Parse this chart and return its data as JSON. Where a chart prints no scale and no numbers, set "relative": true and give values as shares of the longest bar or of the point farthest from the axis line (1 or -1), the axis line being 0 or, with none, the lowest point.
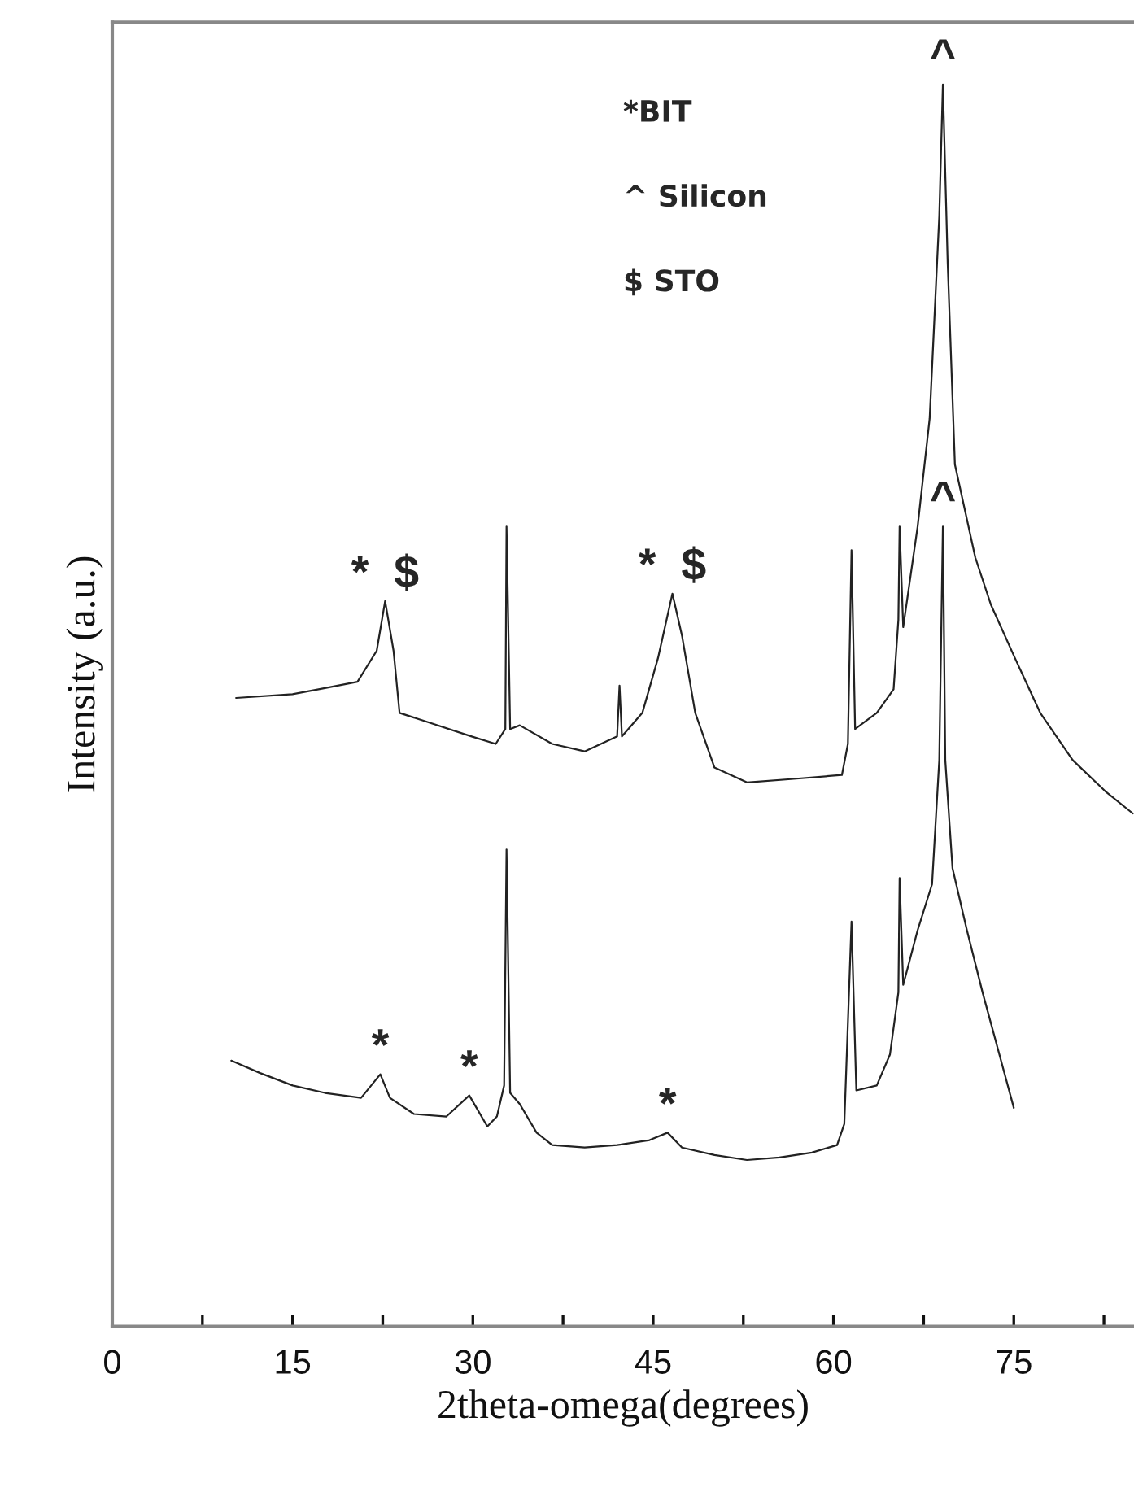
{
  "chart_data": {
    "type": "line",
    "relative": true,
    "xlabel": "2theta-omega(degrees)",
    "ylabel": "Intensity (a.u.)",
    "xlim": [
      0,
      85
    ],
    "xticks": [
      0,
      {
        "value": 7.5,
        "label": null
      },
      15,
      {
        "value": 22.5,
        "label": null
      },
      30,
      {
        "value": 37.5,
        "label": null
      },
      45,
      {
        "value": 52.5,
        "label": null
      },
      60,
      {
        "value": 67.5,
        "label": null
      },
      75,
      {
        "value": 82.5,
        "label": null
      }
    ],
    "grid": false,
    "marker": "none",
    "line_style": "solid",
    "series": [
      {
        "color": "#222222",
        "x": [
          10.3,
          15.0,
          17.7,
          20.4,
          22.0,
          22.7,
          23.4,
          23.9,
          25.8,
          29.9,
          31.9,
          32.7,
          32.8,
          33.1,
          33.9,
          36.6,
          39.3,
          42.0,
          42.2,
          42.4,
          44.1,
          45.4,
          46.6,
          47.4,
          48.5,
          50.1,
          52.8,
          56.9,
          60.7,
          61.2,
          61.5,
          61.8,
          63.6,
          65.0,
          65.4,
          65.5,
          65.8,
          67.0,
          68.0,
          68.8,
          69.1,
          69.5,
          70.1,
          71.8,
          73.1,
          75.1,
          77.2,
          79.9,
          82.6,
          84.9
        ],
        "values": [
          0.506,
          0.509,
          0.514,
          0.519,
          0.544,
          0.584,
          0.544,
          0.494,
          0.488,
          0.475,
          0.469,
          0.481,
          0.644,
          0.481,
          0.484,
          0.469,
          0.463,
          0.475,
          0.516,
          0.475,
          0.494,
          0.538,
          0.59,
          0.556,
          0.494,
          0.45,
          0.438,
          0.441,
          0.444,
          0.469,
          0.625,
          0.481,
          0.494,
          0.513,
          0.569,
          0.644,
          0.563,
          0.644,
          0.731,
          0.894,
          1.0,
          0.856,
          0.694,
          0.619,
          0.581,
          0.538,
          0.494,
          0.456,
          0.431,
          0.413
        ]
      },
      {
        "color": "#222222",
        "x": [
          9.9,
          12.3,
          15.0,
          17.7,
          20.7,
          22.3,
          23.1,
          25.1,
          27.8,
          29.7,
          31.2,
          32.0,
          32.6,
          32.8,
          33.1,
          33.9,
          35.3,
          36.6,
          39.3,
          42.0,
          44.7,
          46.2,
          47.4,
          50.1,
          52.8,
          55.5,
          58.2,
          60.3,
          60.9,
          61.5,
          61.9,
          63.6,
          64.7,
          65.4,
          65.5,
          65.8,
          67.0,
          68.2,
          68.8,
          69.1,
          69.3,
          69.9,
          71.1,
          72.4,
          73.8,
          75.0
        ],
        "values": [
          0.214,
          0.204,
          0.194,
          0.188,
          0.184,
          0.203,
          0.184,
          0.171,
          0.169,
          0.186,
          0.161,
          0.169,
          0.194,
          0.384,
          0.188,
          0.179,
          0.156,
          0.146,
          0.144,
          0.146,
          0.15,
          0.156,
          0.144,
          0.138,
          0.134,
          0.136,
          0.14,
          0.146,
          0.163,
          0.326,
          0.19,
          0.194,
          0.219,
          0.269,
          0.361,
          0.275,
          0.319,
          0.356,
          0.456,
          0.644,
          0.456,
          0.369,
          0.319,
          0.269,
          0.219,
          0.176
        ]
      }
    ],
    "annotations": [
      "*BIT",
      "^ Silicon",
      "$ STO",
      {
        "text": "*  $",
        "x": 22.7,
        "y": 0.584
      },
      {
        "text": "*  $",
        "x": 46.6,
        "y": 0.59
      },
      {
        "text": "^",
        "x": 69.1,
        "y": 1.0
      },
      {
        "text": "*",
        "x": 22.3,
        "y": 0.203
      },
      {
        "text": "*",
        "x": 29.7,
        "y": 0.186
      },
      {
        "text": "*",
        "x": 46.2,
        "y": 0.156
      },
      {
        "text": "^",
        "x": 69.1,
        "y": 0.644
      }
    ]
  }
}
